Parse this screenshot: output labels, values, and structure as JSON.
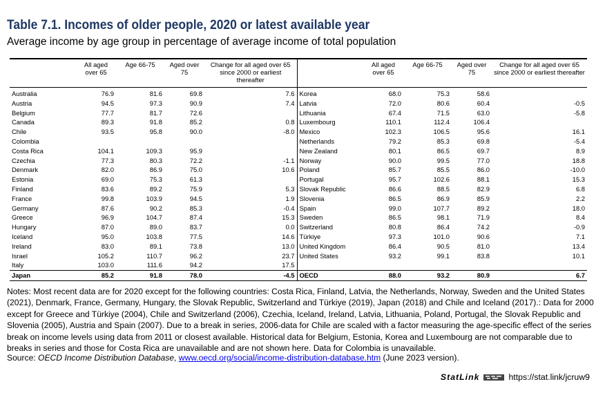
{
  "title": "Table 7.1. Incomes of older people, 2020 or latest available year",
  "subtitle": "Average income by age group in percentage of average income of total population",
  "columns": [
    "All aged over 65",
    "Age 66-75",
    "Aged over 75",
    "Change for all aged over 65 since 2000 or earliest thereafter"
  ],
  "rows": [
    {
      "l": [
        "Australia",
        "76.9",
        "81.6",
        "69.8",
        "7.6"
      ],
      "r": [
        "Korea",
        "68.0",
        "75.3",
        "58.6",
        ""
      ]
    },
    {
      "l": [
        "Austria",
        "94.5",
        "97.3",
        "90.9",
        "7.4"
      ],
      "r": [
        "Latvia",
        "72.0",
        "80.6",
        "60.4",
        "-0.5"
      ]
    },
    {
      "l": [
        "Belgium",
        "77.7",
        "81.7",
        "72.6",
        ""
      ],
      "r": [
        "Lithuania",
        "67.4",
        "71.5",
        "63.0",
        "-5.8"
      ]
    },
    {
      "l": [
        "Canada",
        "89.3",
        "91.8",
        "85.2",
        "0.8"
      ],
      "r": [
        "Luxembourg",
        "110.1",
        "112.4",
        "106.4",
        ""
      ]
    },
    {
      "l": [
        "Chile",
        "93.5",
        "95.8",
        "90.0",
        "-8.0"
      ],
      "r": [
        "Mexico",
        "102.3",
        "106.5",
        "95.6",
        "16.1"
      ]
    },
    {
      "l": [
        "Colombia",
        "",
        "",
        "",
        ""
      ],
      "r": [
        "Netherlands",
        "79.2",
        "85.3",
        "69.8",
        "-5.4"
      ]
    },
    {
      "l": [
        "Costa Rica",
        "104.1",
        "109.3",
        "95.9",
        ""
      ],
      "r": [
        "New Zealand",
        "80.1",
        "86.5",
        "69.7",
        "8.9"
      ]
    },
    {
      "l": [
        "Czechia",
        "77.3",
        "80.3",
        "72.2",
        "-1.1"
      ],
      "r": [
        "Norway",
        "90.0",
        "99.5",
        "77.0",
        "18.8"
      ]
    },
    {
      "l": [
        "Denmark",
        "82.0",
        "86.9",
        "75.0",
        "10.6"
      ],
      "r": [
        "Poland",
        "85.7",
        "85.5",
        "86.0",
        "-10.0"
      ]
    },
    {
      "l": [
        "Estonia",
        "69.0",
        "75.3",
        "61.3",
        ""
      ],
      "r": [
        "Portugal",
        "95.7",
        "102.6",
        "88.1",
        "15.3"
      ]
    },
    {
      "l": [
        "Finland",
        "83.6",
        "89.2",
        "75.9",
        "5.3"
      ],
      "r": [
        "Slovak Republic",
        "86.6",
        "88.5",
        "82.9",
        "6.8"
      ]
    },
    {
      "l": [
        "France",
        "99.8",
        "103.9",
        "94.5",
        "1.9"
      ],
      "r": [
        "Slovenia",
        "86.5",
        "86.9",
        "85.9",
        "2.2"
      ]
    },
    {
      "l": [
        "Germany",
        "87.6",
        "90.2",
        "85.3",
        "-0.4"
      ],
      "r": [
        "Spain",
        "99.0",
        "107.7",
        "89.2",
        "18.0"
      ]
    },
    {
      "l": [
        "Greece",
        "96.9",
        "104.7",
        "87.4",
        "15.3"
      ],
      "r": [
        "Sweden",
        "86.5",
        "98.1",
        "71.9",
        "8.4"
      ]
    },
    {
      "l": [
        "Hungary",
        "87.0",
        "89.0",
        "83.7",
        "0.0"
      ],
      "r": [
        "Switzerland",
        "80.8",
        "86.4",
        "74.2",
        "-0.9"
      ]
    },
    {
      "l": [
        "Iceland",
        "95.0",
        "103.8",
        "77.5",
        "14.6"
      ],
      "r": [
        "Türkiye",
        "97.3",
        "101.0",
        "90.6",
        "7.1"
      ]
    },
    {
      "l": [
        "Ireland",
        "83.0",
        "89.1",
        "73.8",
        "13.0"
      ],
      "r": [
        "United Kingdom",
        "86.4",
        "90.5",
        "81.0",
        "13.4"
      ]
    },
    {
      "l": [
        "Israel",
        "105.2",
        "110.7",
        "96.2",
        "23.7"
      ],
      "r": [
        "United States",
        "93.2",
        "99.1",
        "83.8",
        "10.1"
      ]
    },
    {
      "l": [
        "Italy",
        "103.0",
        "111.6",
        "94.2",
        "17.5"
      ],
      "r": [
        "",
        "",
        "",
        "",
        ""
      ]
    },
    {
      "l": [
        "Japan",
        "85.2",
        "91.8",
        "78.0",
        "-4.5"
      ],
      "r": [
        "OECD",
        "88.0",
        "93.2",
        "80.9",
        "6.7"
      ]
    }
  ],
  "notes": "Notes: Most recent data are for 2020 except for the following countries: Costa Rica, Finland, Latvia, the Netherlands, Norway, Sweden and the United States (2021), Denmark, France, Germany, Hungary, the Slovak Republic, Switzerland and Türkiye (2019), Japan (2018) and Chile and Iceland (2017).: Data for 2000 except for Greece and Türkiye (2004), Chile and Switzerland (2006), Czechia, Iceland, Ireland, Latvia, Lithuania, Poland, Portugal, the Slovak Republic and Slovenia (2005), Austria and Spain (2007). Due to a break in series, 2006-data for Chile are scaled with a factor measuring the age-specific effect of the series break on income levels using data from 2011 or closest available. Historical data for Belgium, Estonia, Korea and Luxembourg are not comparable due to breaks in series and those for Costa Rica are unavailable and are not shown here. Data for Colombia is unavailable.",
  "source": {
    "prefix": "Source: ",
    "database": "OECD Income Distribution Database",
    "separator": ", ",
    "link": "www.oecd.org/social/income-distribution-database.htm",
    "suffix": " (June 2023 version)."
  },
  "statlink": {
    "brand": "StatLink",
    "url": "https://stat.link/jcruw9"
  }
}
